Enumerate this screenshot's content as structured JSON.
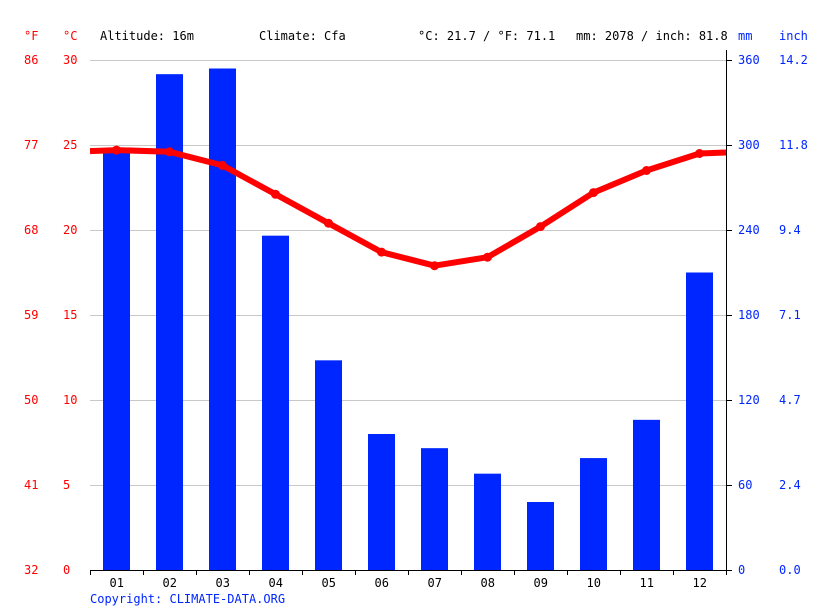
{
  "header": {
    "unit_f": "°F",
    "unit_c": "°C",
    "altitude": "Altitude: 16m",
    "climate": "Climate: Cfa",
    "temp_summary": "°C: 21.7 / °F: 71.1",
    "precip_summary": "mm: 2078 / inch: 81.8",
    "unit_mm": "mm",
    "unit_inch": "inch"
  },
  "axes": {
    "fahrenheit": [
      "86",
      "77",
      "68",
      "59",
      "50",
      "41",
      "32"
    ],
    "celsius": [
      "30",
      "25",
      "20",
      "15",
      "10",
      "5",
      "0"
    ],
    "mm": [
      "360",
      "300",
      "240",
      "180",
      "120",
      "60",
      "0"
    ],
    "inch": [
      "14.2",
      "11.8",
      "9.4",
      "7.1",
      "4.7",
      "2.4",
      "0.0"
    ]
  },
  "footer": {
    "copyright": "Copyright: CLIMATE-DATA.ORG"
  },
  "colors": {
    "temperature": "#ff0000",
    "precipitation": "#0026ff",
    "grid": "#c8c8c8"
  },
  "chart_data": {
    "type": "bar",
    "title": "",
    "categories": [
      "01",
      "02",
      "03",
      "04",
      "05",
      "06",
      "07",
      "08",
      "09",
      "10",
      "11",
      "12"
    ],
    "series": [
      {
        "name": "Precipitation (mm)",
        "type": "bar",
        "axis": "right",
        "values": [
          296,
          350,
          354,
          236,
          148,
          96,
          86,
          68,
          48,
          79,
          106,
          210
        ]
      },
      {
        "name": "Temperature (°C)",
        "type": "line",
        "axis": "left",
        "values": [
          24.7,
          24.6,
          23.8,
          22.1,
          20.4,
          18.7,
          17.9,
          18.4,
          20.2,
          22.2,
          23.5,
          24.5
        ]
      }
    ],
    "xlabel": "",
    "ylabel_left": "°C / °F",
    "ylabel_right": "mm / inch",
    "ylim_left_c": [
      0,
      30
    ],
    "ylim_left_f": [
      32,
      86
    ],
    "ylim_right_mm": [
      0,
      360
    ],
    "ylim_right_inch": [
      0.0,
      14.2
    ],
    "grid": true,
    "annotations": [
      "Altitude: 16m",
      "Climate: Cfa",
      "°C: 21.7 / °F: 71.1",
      "mm: 2078 / inch: 81.8"
    ]
  }
}
